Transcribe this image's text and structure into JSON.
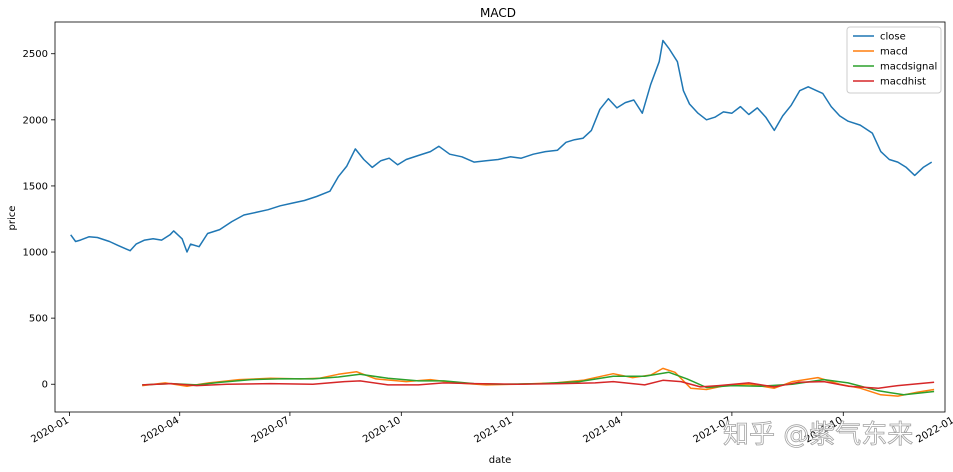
{
  "chart_data": {
    "type": "line",
    "title": "MACD",
    "xlabel": "date",
    "ylabel": "price",
    "ylim": [
      -210,
      2740
    ],
    "xlim": [
      "2019-12-20",
      "2021-12-24"
    ],
    "y_ticks": [
      0,
      500,
      1000,
      1500,
      2000,
      2500
    ],
    "x_ticks": [
      {
        "date": "2020-01-01",
        "label": "2020-01"
      },
      {
        "date": "2020-04-01",
        "label": "2020-04"
      },
      {
        "date": "2020-07-01",
        "label": "2020-07"
      },
      {
        "date": "2020-10-01",
        "label": "2020-10"
      },
      {
        "date": "2021-01-01",
        "label": "2021-01"
      },
      {
        "date": "2021-04-01",
        "label": "2021-04"
      },
      {
        "date": "2021-07-01",
        "label": "2021-07"
      },
      {
        "date": "2021-10-01",
        "label": "2021-10"
      },
      {
        "date": "2022-01-01",
        "label": "2022-01"
      }
    ],
    "legend_position": "top-right",
    "series": [
      {
        "name": "close",
        "color": "#1f77b4",
        "points": [
          [
            "2020-01-02",
            1130
          ],
          [
            "2020-01-06",
            1080
          ],
          [
            "2020-01-10",
            1090
          ],
          [
            "2020-01-17",
            1115
          ],
          [
            "2020-01-24",
            1110
          ],
          [
            "2020-02-03",
            1080
          ],
          [
            "2020-02-10",
            1050
          ],
          [
            "2020-02-20",
            1010
          ],
          [
            "2020-02-25",
            1060
          ],
          [
            "2020-03-03",
            1090
          ],
          [
            "2020-03-10",
            1100
          ],
          [
            "2020-03-17",
            1090
          ],
          [
            "2020-03-24",
            1130
          ],
          [
            "2020-03-27",
            1160
          ],
          [
            "2020-04-03",
            1100
          ],
          [
            "2020-04-07",
            1000
          ],
          [
            "2020-04-10",
            1060
          ],
          [
            "2020-04-17",
            1040
          ],
          [
            "2020-04-24",
            1140
          ],
          [
            "2020-05-04",
            1170
          ],
          [
            "2020-05-14",
            1230
          ],
          [
            "2020-05-24",
            1280
          ],
          [
            "2020-06-03",
            1300
          ],
          [
            "2020-06-13",
            1320
          ],
          [
            "2020-06-23",
            1350
          ],
          [
            "2020-07-03",
            1370
          ],
          [
            "2020-07-13",
            1390
          ],
          [
            "2020-07-23",
            1420
          ],
          [
            "2020-08-03",
            1460
          ],
          [
            "2020-08-10",
            1570
          ],
          [
            "2020-08-17",
            1650
          ],
          [
            "2020-08-24",
            1780
          ],
          [
            "2020-08-31",
            1700
          ],
          [
            "2020-09-07",
            1640
          ],
          [
            "2020-09-14",
            1690
          ],
          [
            "2020-09-21",
            1710
          ],
          [
            "2020-09-28",
            1660
          ],
          [
            "2020-10-05",
            1700
          ],
          [
            "2020-10-15",
            1730
          ],
          [
            "2020-10-25",
            1760
          ],
          [
            "2020-11-01",
            1800
          ],
          [
            "2020-11-10",
            1740
          ],
          [
            "2020-11-20",
            1720
          ],
          [
            "2020-11-30",
            1680
          ],
          [
            "2020-12-10",
            1690
          ],
          [
            "2020-12-20",
            1700
          ],
          [
            "2020-12-30",
            1720
          ],
          [
            "2021-01-08",
            1710
          ],
          [
            "2021-01-18",
            1740
          ],
          [
            "2021-01-28",
            1760
          ],
          [
            "2021-02-07",
            1770
          ],
          [
            "2021-02-14",
            1830
          ],
          [
            "2021-02-21",
            1850
          ],
          [
            "2021-02-28",
            1860
          ],
          [
            "2021-03-07",
            1920
          ],
          [
            "2021-03-14",
            2080
          ],
          [
            "2021-03-21",
            2160
          ],
          [
            "2021-03-28",
            2090
          ],
          [
            "2021-04-04",
            2130
          ],
          [
            "2021-04-11",
            2150
          ],
          [
            "2021-04-18",
            2050
          ],
          [
            "2021-04-25",
            2270
          ],
          [
            "2021-05-02",
            2440
          ],
          [
            "2021-05-05",
            2600
          ],
          [
            "2021-05-10",
            2540
          ],
          [
            "2021-05-17",
            2440
          ],
          [
            "2021-05-22",
            2220
          ],
          [
            "2021-05-27",
            2120
          ],
          [
            "2021-06-03",
            2050
          ],
          [
            "2021-06-10",
            2000
          ],
          [
            "2021-06-17",
            2020
          ],
          [
            "2021-06-24",
            2060
          ],
          [
            "2021-07-01",
            2050
          ],
          [
            "2021-07-08",
            2100
          ],
          [
            "2021-07-15",
            2040
          ],
          [
            "2021-07-22",
            2090
          ],
          [
            "2021-07-29",
            2020
          ],
          [
            "2021-08-05",
            1920
          ],
          [
            "2021-08-12",
            2030
          ],
          [
            "2021-08-19",
            2110
          ],
          [
            "2021-08-26",
            2220
          ],
          [
            "2021-09-02",
            2250
          ],
          [
            "2021-09-09",
            2220
          ],
          [
            "2021-09-14",
            2200
          ],
          [
            "2021-09-21",
            2100
          ],
          [
            "2021-09-28",
            2030
          ],
          [
            "2021-10-05",
            1990
          ],
          [
            "2021-10-15",
            1960
          ],
          [
            "2021-10-25",
            1900
          ],
          [
            "2021-11-01",
            1760
          ],
          [
            "2021-11-08",
            1700
          ],
          [
            "2021-11-15",
            1680
          ],
          [
            "2021-11-22",
            1640
          ],
          [
            "2021-11-29",
            1580
          ],
          [
            "2021-12-06",
            1640
          ],
          [
            "2021-12-13",
            1680
          ]
        ]
      },
      {
        "name": "macd",
        "color": "#ff7f0e",
        "points": [
          [
            "2020-03-01",
            -10
          ],
          [
            "2020-03-20",
            10
          ],
          [
            "2020-04-07",
            -15
          ],
          [
            "2020-04-25",
            10
          ],
          [
            "2020-05-20",
            35
          ],
          [
            "2020-06-15",
            45
          ],
          [
            "2020-07-10",
            40
          ],
          [
            "2020-07-25",
            45
          ],
          [
            "2020-08-10",
            75
          ],
          [
            "2020-08-25",
            95
          ],
          [
            "2020-09-10",
            40
          ],
          [
            "2020-10-05",
            20
          ],
          [
            "2020-10-25",
            35
          ],
          [
            "2020-11-15",
            10
          ],
          [
            "2020-12-10",
            -5
          ],
          [
            "2021-01-05",
            0
          ],
          [
            "2021-02-05",
            10
          ],
          [
            "2021-02-28",
            30
          ],
          [
            "2021-03-15",
            60
          ],
          [
            "2021-03-25",
            80
          ],
          [
            "2021-04-10",
            50
          ],
          [
            "2021-04-25",
            70
          ],
          [
            "2021-05-05",
            120
          ],
          [
            "2021-05-15",
            90
          ],
          [
            "2021-05-28",
            -30
          ],
          [
            "2021-06-10",
            -40
          ],
          [
            "2021-06-25",
            -10
          ],
          [
            "2021-07-15",
            0
          ],
          [
            "2021-08-05",
            -30
          ],
          [
            "2021-08-20",
            20
          ],
          [
            "2021-09-10",
            50
          ],
          [
            "2021-09-28",
            0
          ],
          [
            "2021-10-15",
            -30
          ],
          [
            "2021-11-01",
            -80
          ],
          [
            "2021-11-15",
            -90
          ],
          [
            "2021-12-01",
            -60
          ],
          [
            "2021-12-15",
            -40
          ]
        ]
      },
      {
        "name": "macdsignal",
        "color": "#2ca02c",
        "points": [
          [
            "2020-03-01",
            -5
          ],
          [
            "2020-03-25",
            5
          ],
          [
            "2020-04-15",
            -5
          ],
          [
            "2020-05-05",
            15
          ],
          [
            "2020-05-30",
            35
          ],
          [
            "2020-06-25",
            42
          ],
          [
            "2020-07-20",
            40
          ],
          [
            "2020-08-10",
            55
          ],
          [
            "2020-08-28",
            75
          ],
          [
            "2020-09-20",
            45
          ],
          [
            "2020-10-15",
            25
          ],
          [
            "2020-11-05",
            25
          ],
          [
            "2020-11-30",
            5
          ],
          [
            "2020-12-25",
            0
          ],
          [
            "2021-01-25",
            5
          ],
          [
            "2021-02-25",
            20
          ],
          [
            "2021-03-25",
            60
          ],
          [
            "2021-04-20",
            60
          ],
          [
            "2021-05-10",
            90
          ],
          [
            "2021-05-25",
            40
          ],
          [
            "2021-06-10",
            -25
          ],
          [
            "2021-07-01",
            -10
          ],
          [
            "2021-07-25",
            -15
          ],
          [
            "2021-08-20",
            0
          ],
          [
            "2021-09-15",
            35
          ],
          [
            "2021-10-05",
            10
          ],
          [
            "2021-10-30",
            -50
          ],
          [
            "2021-11-20",
            -80
          ],
          [
            "2021-12-15",
            -55
          ]
        ]
      },
      {
        "name": "macdhist",
        "color": "#d62728",
        "points": [
          [
            "2020-03-01",
            -5
          ],
          [
            "2020-03-25",
            5
          ],
          [
            "2020-04-15",
            -10
          ],
          [
            "2020-05-10",
            0
          ],
          [
            "2020-06-15",
            5
          ],
          [
            "2020-07-20",
            0
          ],
          [
            "2020-08-15",
            20
          ],
          [
            "2020-08-28",
            25
          ],
          [
            "2020-09-20",
            -5
          ],
          [
            "2020-10-15",
            -5
          ],
          [
            "2020-11-05",
            10
          ],
          [
            "2020-11-30",
            5
          ],
          [
            "2021-01-05",
            0
          ],
          [
            "2021-02-10",
            5
          ],
          [
            "2021-03-10",
            10
          ],
          [
            "2021-03-25",
            20
          ],
          [
            "2021-04-20",
            -5
          ],
          [
            "2021-05-05",
            30
          ],
          [
            "2021-05-20",
            20
          ],
          [
            "2021-06-05",
            -20
          ],
          [
            "2021-06-20",
            -10
          ],
          [
            "2021-07-15",
            10
          ],
          [
            "2021-08-05",
            -20
          ],
          [
            "2021-08-25",
            15
          ],
          [
            "2021-09-15",
            20
          ],
          [
            "2021-10-05",
            -15
          ],
          [
            "2021-10-30",
            -30
          ],
          [
            "2021-11-15",
            -10
          ],
          [
            "2021-12-15",
            15
          ]
        ]
      }
    ]
  },
  "watermark": "知乎 @紫气东来"
}
